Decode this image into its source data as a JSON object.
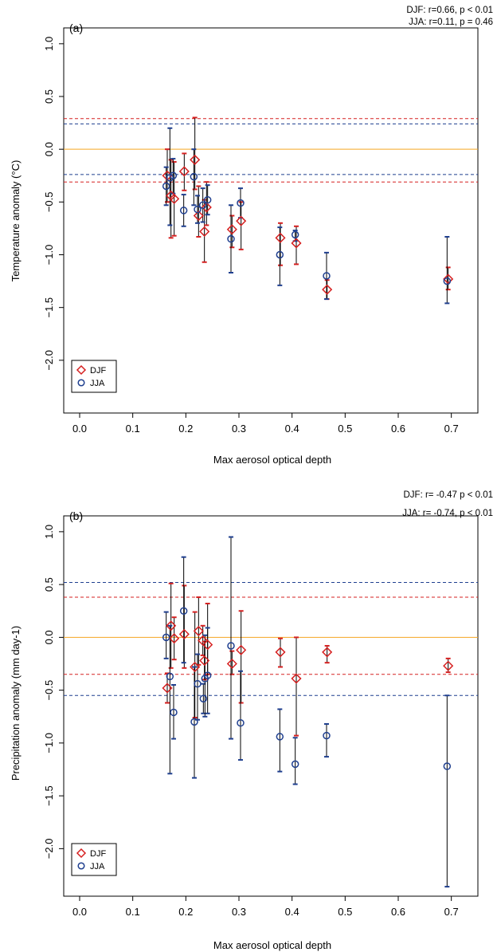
{
  "colors": {
    "djf": "#d62020",
    "jja": "#1f3f8f",
    "reference_line": "#f5a623",
    "error_bar": "#000000",
    "axis": "#000000"
  },
  "chart_data": [
    {
      "type": "scatter",
      "panel_label": "(a)",
      "stats": [
        "DJF: r=0.66, p < 0.01",
        "JJA: r=0.11, p = 0.46"
      ],
      "xlabel": "Max aerosol optical depth",
      "ylabel": "Temperature anomaly (°C)",
      "xlim": [
        -0.03,
        0.75
      ],
      "ylim": [
        -2.5,
        1.15
      ],
      "xticks": [
        0.0,
        0.1,
        0.2,
        0.3,
        0.4,
        0.5,
        0.6,
        0.7
      ],
      "xtick_labels": [
        "0.0",
        "0.1",
        "0.2",
        "0.3",
        "0.4",
        "0.5",
        "0.6",
        "0.7"
      ],
      "yticks": [
        1.0,
        0.5,
        0.0,
        -0.5,
        -1.0,
        -1.5,
        -2.0
      ],
      "ytick_labels": [
        "1.0",
        "0.5",
        "0.0",
        "−0.5",
        "−1.0",
        "−1.5",
        "−2.0"
      ],
      "hlines": [
        {
          "y": 0.0,
          "color": "reference_line",
          "style": "solid"
        },
        {
          "y": 0.29,
          "color": "djf",
          "style": "dashed"
        },
        {
          "y": -0.31,
          "color": "djf",
          "style": "dashed"
        },
        {
          "y": 0.24,
          "color": "jja",
          "style": "dashed"
        },
        {
          "y": -0.24,
          "color": "jja",
          "style": "dashed"
        }
      ],
      "legend": {
        "position": "bottom-left",
        "entries": [
          {
            "label": "DJF",
            "marker": "diamond",
            "series": "djf"
          },
          {
            "label": "JJA",
            "marker": "circle",
            "series": "jja"
          }
        ]
      },
      "series": [
        {
          "name": "DJF",
          "key": "djf",
          "marker": "diamond",
          "points": [
            {
              "x": 0.165,
              "y": -0.25,
              "lo": -0.5,
              "hi": 0.0
            },
            {
              "x": 0.172,
              "y": -0.44,
              "lo": -0.84,
              "hi": -0.1
            },
            {
              "x": 0.178,
              "y": -0.47,
              "lo": -0.82,
              "hi": -0.12
            },
            {
              "x": 0.197,
              "y": -0.21,
              "lo": -0.39,
              "hi": -0.04
            },
            {
              "x": 0.217,
              "y": -0.1,
              "lo": -0.38,
              "hi": 0.3
            },
            {
              "x": 0.224,
              "y": -0.63,
              "lo": -0.83,
              "hi": -0.35
            },
            {
              "x": 0.235,
              "y": -0.78,
              "lo": -1.07,
              "hi": -0.48
            },
            {
              "x": 0.239,
              "y": -0.55,
              "lo": -0.72,
              "hi": -0.31
            },
            {
              "x": 0.287,
              "y": -0.76,
              "lo": -0.93,
              "hi": -0.63
            },
            {
              "x": 0.304,
              "y": -0.68,
              "lo": -0.95,
              "hi": -0.5
            },
            {
              "x": 0.378,
              "y": -0.84,
              "lo": -1.1,
              "hi": -0.7
            },
            {
              "x": 0.408,
              "y": -0.89,
              "lo": -1.09,
              "hi": -0.73
            },
            {
              "x": 0.466,
              "y": -1.33,
              "lo": -1.42,
              "hi": -1.24
            },
            {
              "x": 0.694,
              "y": -1.23,
              "lo": -1.33,
              "hi": -1.12
            }
          ]
        },
        {
          "name": "JJA",
          "key": "jja",
          "marker": "circle",
          "points": [
            {
              "x": 0.163,
              "y": -0.35,
              "lo": -0.53,
              "hi": -0.17
            },
            {
              "x": 0.17,
              "y": -0.27,
              "lo": -0.72,
              "hi": 0.2
            },
            {
              "x": 0.176,
              "y": -0.25,
              "lo": -0.42,
              "hi": -0.09
            },
            {
              "x": 0.196,
              "y": -0.58,
              "lo": -0.73,
              "hi": -0.43
            },
            {
              "x": 0.215,
              "y": -0.26,
              "lo": -0.53,
              "hi": 0.0
            },
            {
              "x": 0.222,
              "y": -0.57,
              "lo": -0.7,
              "hi": -0.44
            },
            {
              "x": 0.232,
              "y": -0.53,
              "lo": -0.69,
              "hi": -0.37
            },
            {
              "x": 0.241,
              "y": -0.48,
              "lo": -0.62,
              "hi": -0.34
            },
            {
              "x": 0.285,
              "y": -0.85,
              "lo": -1.17,
              "hi": -0.53
            },
            {
              "x": 0.303,
              "y": -0.51,
              "lo": -0.65,
              "hi": -0.37
            },
            {
              "x": 0.377,
              "y": -1.0,
              "lo": -1.29,
              "hi": -0.74
            },
            {
              "x": 0.406,
              "y": -0.81,
              "lo": -0.87,
              "hi": -0.77
            },
            {
              "x": 0.465,
              "y": -1.2,
              "lo": -1.42,
              "hi": -0.98
            },
            {
              "x": 0.692,
              "y": -1.25,
              "lo": -1.46,
              "hi": -0.83
            }
          ]
        }
      ]
    },
    {
      "type": "scatter",
      "panel_label": "(b)",
      "stats": [
        "DJF: r= -0.47 p < 0.01",
        "JJA: r= -0.74, p < 0.01"
      ],
      "xlabel": "Max aerosol optical depth",
      "ylabel": "Precipitation anomaly (mm day-1)",
      "xlim": [
        -0.03,
        0.75
      ],
      "ylim": [
        -2.45,
        1.15
      ],
      "xticks": [
        0.0,
        0.1,
        0.2,
        0.3,
        0.4,
        0.5,
        0.6,
        0.7
      ],
      "xtick_labels": [
        "0.0",
        "0.1",
        "0.2",
        "0.3",
        "0.4",
        "0.5",
        "0.6",
        "0.7"
      ],
      "yticks": [
        1.0,
        0.5,
        0.0,
        -0.5,
        -1.0,
        -1.5,
        -2.0
      ],
      "ytick_labels": [
        "1.0",
        "0.5",
        "0.0",
        "−0.5",
        "−1.0",
        "−1.5",
        "−2.0"
      ],
      "hlines": [
        {
          "y": 0.0,
          "color": "reference_line",
          "style": "solid"
        },
        {
          "y": 0.38,
          "color": "djf",
          "style": "dashed"
        },
        {
          "y": -0.35,
          "color": "djf",
          "style": "dashed"
        },
        {
          "y": 0.52,
          "color": "jja",
          "style": "dashed"
        },
        {
          "y": -0.55,
          "color": "jja",
          "style": "dashed"
        }
      ],
      "legend": {
        "position": "bottom-left",
        "entries": [
          {
            "label": "DJF",
            "marker": "diamond",
            "series": "djf"
          },
          {
            "label": "JJA",
            "marker": "circle",
            "series": "jja"
          }
        ]
      },
      "series": [
        {
          "name": "DJF",
          "key": "djf",
          "marker": "diamond",
          "points": [
            {
              "x": 0.165,
              "y": -0.48,
              "lo": -0.62,
              "hi": -0.34
            },
            {
              "x": 0.172,
              "y": 0.11,
              "lo": -0.29,
              "hi": 0.51
            },
            {
              "x": 0.178,
              "y": -0.01,
              "lo": -0.21,
              "hi": 0.19
            },
            {
              "x": 0.197,
              "y": 0.03,
              "lo": -0.29,
              "hi": 0.49
            },
            {
              "x": 0.217,
              "y": -0.28,
              "lo": -0.76,
              "hi": 0.24
            },
            {
              "x": 0.224,
              "y": 0.06,
              "lo": -0.26,
              "hi": 0.38
            },
            {
              "x": 0.232,
              "y": -0.03,
              "lo": -0.17,
              "hi": 0.11
            },
            {
              "x": 0.235,
              "y": -0.22,
              "lo": -0.4,
              "hi": -0.04
            },
            {
              "x": 0.241,
              "y": -0.07,
              "lo": -0.35,
              "hi": 0.32
            },
            {
              "x": 0.287,
              "y": -0.25,
              "lo": -0.35,
              "hi": -0.13
            },
            {
              "x": 0.304,
              "y": -0.12,
              "lo": -0.62,
              "hi": 0.25
            },
            {
              "x": 0.378,
              "y": -0.14,
              "lo": -0.28,
              "hi": -0.01
            },
            {
              "x": 0.408,
              "y": -0.39,
              "lo": -0.93,
              "hi": 0.0
            },
            {
              "x": 0.466,
              "y": -0.14,
              "lo": -0.24,
              "hi": -0.08
            },
            {
              "x": 0.694,
              "y": -0.27,
              "lo": -0.33,
              "hi": -0.2
            }
          ]
        },
        {
          "name": "JJA",
          "key": "jja",
          "marker": "circle",
          "points": [
            {
              "x": 0.163,
              "y": 0.0,
              "lo": -0.2,
              "hi": 0.24
            },
            {
              "x": 0.17,
              "y": -0.37,
              "lo": -1.29,
              "hi": 0.11
            },
            {
              "x": 0.177,
              "y": -0.71,
              "lo": -0.96,
              "hi": -0.45
            },
            {
              "x": 0.196,
              "y": 0.25,
              "lo": -0.24,
              "hi": 0.76
            },
            {
              "x": 0.216,
              "y": -0.8,
              "lo": -1.33,
              "hi": -0.28
            },
            {
              "x": 0.222,
              "y": -0.44,
              "lo": -0.78,
              "hi": -0.16
            },
            {
              "x": 0.233,
              "y": -0.58,
              "lo": -0.72,
              "hi": -0.44
            },
            {
              "x": 0.236,
              "y": -0.39,
              "lo": -0.75,
              "hi": 0.02
            },
            {
              "x": 0.241,
              "y": -0.36,
              "lo": -0.72,
              "hi": 0.09
            },
            {
              "x": 0.285,
              "y": -0.08,
              "lo": -0.96,
              "hi": 0.95
            },
            {
              "x": 0.303,
              "y": -0.81,
              "lo": -1.16,
              "hi": -0.32
            },
            {
              "x": 0.377,
              "y": -0.94,
              "lo": -1.27,
              "hi": -0.68
            },
            {
              "x": 0.406,
              "y": -1.2,
              "lo": -1.39,
              "hi": -0.95
            },
            {
              "x": 0.465,
              "y": -0.93,
              "lo": -1.13,
              "hi": -0.82
            },
            {
              "x": 0.692,
              "y": -1.22,
              "lo": -2.36,
              "hi": -0.55
            }
          ]
        }
      ]
    }
  ]
}
